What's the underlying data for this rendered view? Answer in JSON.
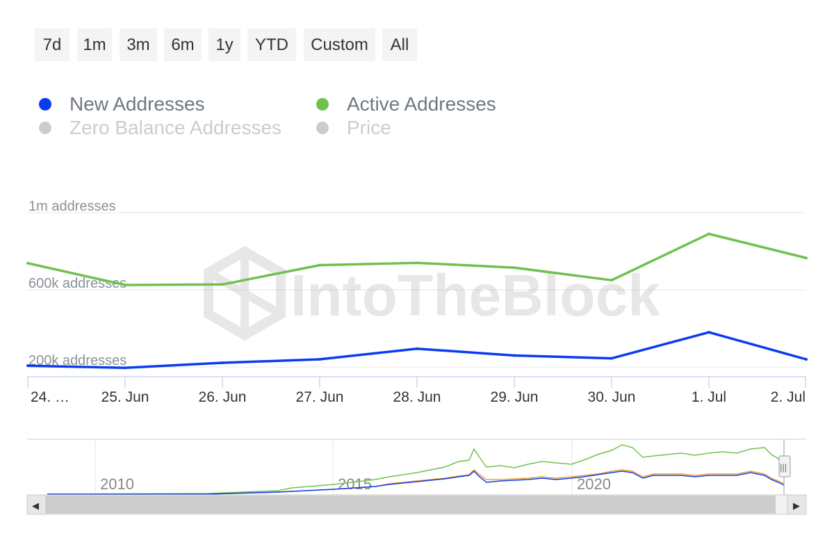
{
  "range_selector": {
    "buttons": [
      "7d",
      "1m",
      "3m",
      "6m",
      "1y",
      "YTD",
      "Custom",
      "All"
    ]
  },
  "legend": [
    {
      "label": "New Addresses",
      "color": "#0b3bf0",
      "visible": true
    },
    {
      "label": "Active Addresses",
      "color": "#6fc14e",
      "visible": true
    },
    {
      "label": "Zero Balance Addresses",
      "color": "#cccccc",
      "visible": false
    },
    {
      "label": "Price",
      "color": "#cccccc",
      "visible": false
    }
  ],
  "watermark": "IntoTheBlock",
  "chart_data": {
    "type": "line",
    "title": "",
    "x": [
      "24. Jun",
      "25. Jun",
      "26. Jun",
      "27. Jun",
      "28. Jun",
      "29. Jun",
      "30. Jun",
      "1. Jul",
      "2. Jul"
    ],
    "x_tick_labels": [
      "24. …",
      "25. Jun",
      "26. Jun",
      "27. Jun",
      "28. Jun",
      "29. Jun",
      "30. Jun",
      "1. Jul",
      "2. Jul"
    ],
    "y_tick_labels": [
      "200k addresses",
      "600k addresses",
      "1m addresses"
    ],
    "y_ticks": [
      200000,
      600000,
      1000000
    ],
    "ylim": [
      150000,
      1000000
    ],
    "grid": true,
    "legend_position": "top-left",
    "series": [
      {
        "name": "New Addresses",
        "color": "#0b3bf0",
        "values": [
          207000,
          196000,
          222000,
          240000,
          295000,
          260000,
          245000,
          380000,
          240000
        ]
      },
      {
        "name": "Active Addresses",
        "color": "#6fc14e",
        "values": [
          738000,
          625000,
          628000,
          728000,
          740000,
          715000,
          650000,
          890000,
          765000
        ]
      }
    ]
  },
  "navigator": {
    "year_labels": [
      "2010",
      "2015",
      "2020"
    ],
    "handle_symbol": "|||",
    "scroll_left_symbol": "◀",
    "scroll_right_symbol": "▶"
  }
}
